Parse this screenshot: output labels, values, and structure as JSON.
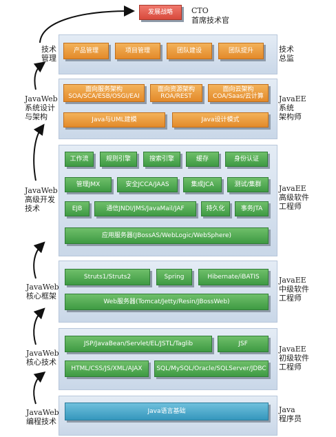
{
  "top": {
    "strategy_label": "发展战略",
    "cto_label": "CTO",
    "cto_title": "首席技术官"
  },
  "levels": {
    "management": {
      "left": "技术\n管理",
      "right": "技术\n总监",
      "boxes": [
        "产品管理",
        "项目管理",
        "团队建设",
        "团队提升"
      ]
    },
    "architect": {
      "left": "JavaWeb\n系统设计\n与架构",
      "right": "JavaEE\n系统\n架构师",
      "row1": [
        {
          "title": "面向服务架构",
          "sub": "SOA/SCA/ESB/OSGI/EAI"
        },
        {
          "title": "面向资源架构",
          "sub": "ROA/REST"
        },
        {
          "title": "面向云架构",
          "sub": "COA/Saas/云计算"
        }
      ],
      "row2": [
        "Java与UML建模",
        "Java设计模式"
      ]
    },
    "senior": {
      "left": "JavaWeb\n高级开发\n技术",
      "right": "JavaEE\n高级软件\n工程师",
      "row1": [
        "工作流",
        "规则引擎",
        "搜索引擎",
        "缓存",
        "身份认证"
      ],
      "row2": [
        "管理JMX",
        "安全JCCA/JAAS",
        "集成JCA",
        "测试/集群"
      ],
      "row3": [
        "EJB",
        "通信JNDI/JMS/JavaMail/JAF",
        "持久化",
        "事务JTA"
      ],
      "row4": [
        "应用服务器(JBossAS/WebLogic/WebSphere)"
      ]
    },
    "middle": {
      "left": "JavaWeb\n核心框架",
      "right": "JavaEE\n中级软件\n工程师",
      "row1": [
        "Struts1/Struts2",
        "Spring",
        "Hibernate/iBATIS"
      ],
      "row2": [
        "Web服务器(Tomcat/Jetty/Resin/JBossWeb)"
      ]
    },
    "junior": {
      "left": "JavaWeb\n核心技术",
      "right": "JavaEE\n初级软件\n工程师",
      "row1": [
        "JSP/JavaBean/Servlet/EL/JSTL/Taglib",
        "JSF"
      ],
      "row2": [
        "HTML/CSS/JS/XML/AJAX",
        "SQL/MySQL/Oracle/SQLServer/JDBC"
      ]
    },
    "base": {
      "left": "JavaWeb\n编程技术",
      "right": "Java\n程序员",
      "box": "Java语言基础"
    }
  }
}
